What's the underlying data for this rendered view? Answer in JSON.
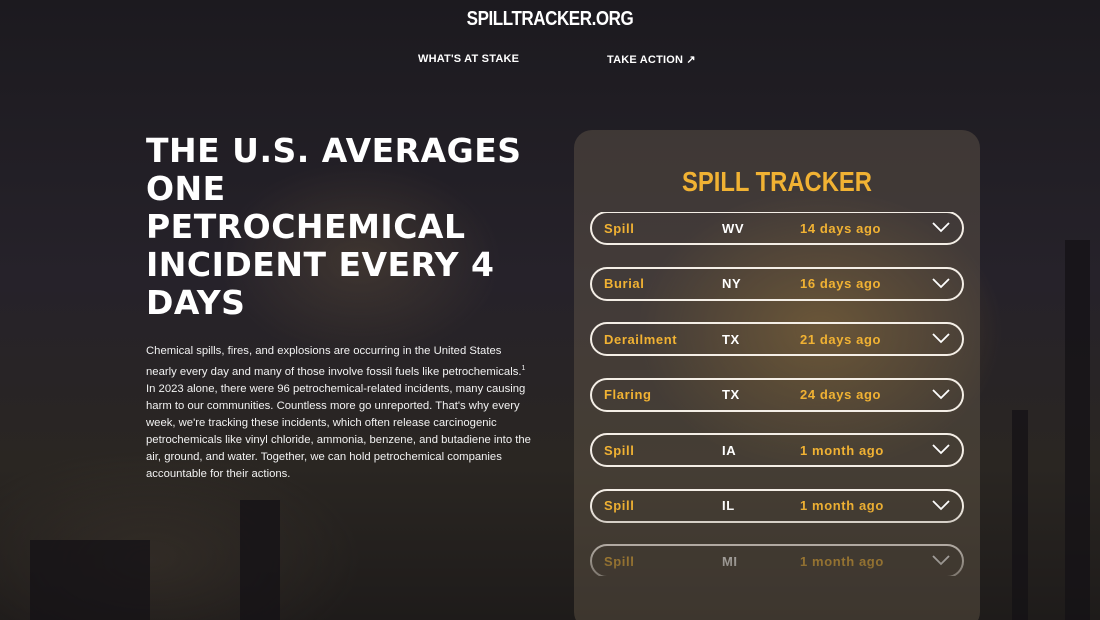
{
  "header": {
    "logo": "SPILLTRACKER.ORG",
    "nav": [
      {
        "label": "WHAT'S AT STAKE"
      },
      {
        "label": "TAKE ACTION ↗"
      }
    ]
  },
  "hero": {
    "headline": "The U.S. averages one petrochemical incident every 4 days",
    "body_before": "Chemical spills, fires, and explosions are occurring in the United States nearly every day and many of those involve fossil fuels like petrochemicals.",
    "footnote": "1",
    "body_after": " In 2023 alone, there were 96 petrochemical-related incidents, many causing harm to our communities. Countless more go unreported. That's why every week, we're tracking these incidents, which often release carcinogenic petrochemicals like vinyl chloride, ammonia, benzene, and butadiene into the air, ground, and water. Together, we can hold petrochemical companies accountable for their actions."
  },
  "tracker": {
    "title": "SPILL TRACKER",
    "accent": "#f1b233",
    "items": [
      {
        "type": "Spill",
        "state": "WV",
        "ago": "14 days ago"
      },
      {
        "type": "Burial",
        "state": "NY",
        "ago": "16 days ago"
      },
      {
        "type": "Derailment",
        "state": "TX",
        "ago": "21 days ago"
      },
      {
        "type": "Flaring",
        "state": "TX",
        "ago": "24 days ago"
      },
      {
        "type": "Spill",
        "state": "IA",
        "ago": "1 month ago"
      },
      {
        "type": "Spill",
        "state": "IL",
        "ago": "1 month ago"
      },
      {
        "type": "Spill",
        "state": "MI",
        "ago": "1 month ago"
      }
    ]
  }
}
